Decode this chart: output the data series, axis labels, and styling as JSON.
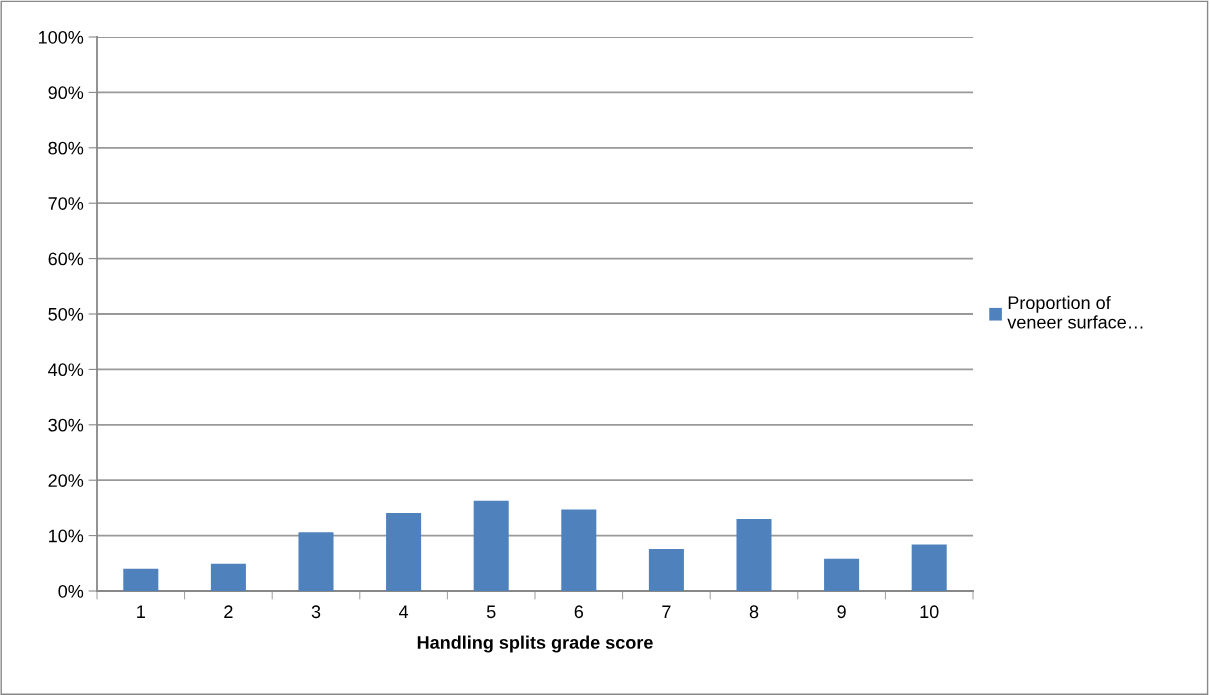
{
  "chart_data": {
    "type": "bar",
    "xlabel": "Handling splits grade score",
    "categories": [
      "1",
      "2",
      "3",
      "4",
      "5",
      "6",
      "7",
      "8",
      "9",
      "10"
    ],
    "series": [
      {
        "name": "Proportion of\nveneer surface…",
        "color": "#4f81bd",
        "values": [
          4.0,
          4.9,
          10.6,
          14.1,
          16.3,
          14.7,
          7.6,
          13.0,
          5.8,
          8.4
        ]
      }
    ],
    "ylim": [
      0,
      100
    ],
    "yticks": [
      {
        "value": 0,
        "label": "0%"
      },
      {
        "value": 10,
        "label": "10%"
      },
      {
        "value": 20,
        "label": "20%"
      },
      {
        "value": 30,
        "label": "30%"
      },
      {
        "value": 40,
        "label": "40%"
      },
      {
        "value": 50,
        "label": "50%"
      },
      {
        "value": 60,
        "label": "60%"
      },
      {
        "value": 70,
        "label": "70%"
      },
      {
        "value": 80,
        "label": "80%"
      },
      {
        "value": 90,
        "label": "90%"
      },
      {
        "value": 100,
        "label": "100%"
      }
    ],
    "grid": "y",
    "legend": "right"
  }
}
